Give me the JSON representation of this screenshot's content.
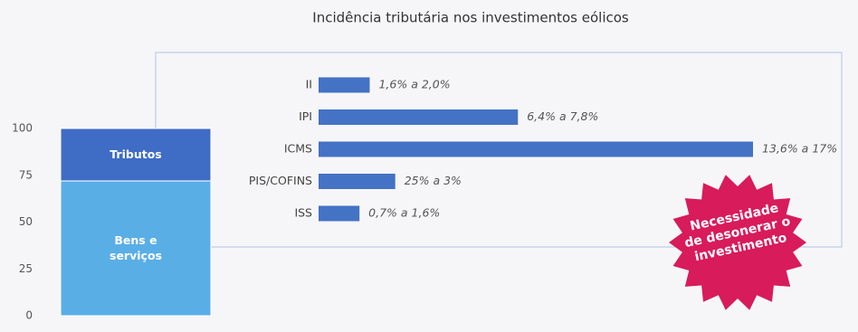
{
  "title": "Incidência tributária nos investimentos eólicos",
  "annotation": "Necessidade de desonerar o investimento",
  "chart_data": [
    {
      "type": "stacked-bar",
      "ylim": [
        0,
        100
      ],
      "yticks": [
        0,
        25,
        50,
        75,
        100
      ],
      "series": [
        {
          "name": "Bens e serviços",
          "color": "#5aaee6",
          "values": [
            72
          ]
        },
        {
          "name": "Tributos",
          "color": "#3f6cc4",
          "values": [
            28
          ]
        }
      ]
    },
    {
      "type": "hbar",
      "categories": [
        "II",
        "IPI",
        "ICMS",
        "PIS/COFINS",
        "ISS"
      ],
      "values": [
        2.0,
        7.8,
        17,
        3,
        1.6
      ],
      "value_labels": [
        "1,6% a 2,0%",
        "6,4% a 7,8%",
        "13,6% a 17%",
        "25% a 3%",
        "0,7% a 1,6%"
      ],
      "color": "#4472c4"
    }
  ]
}
